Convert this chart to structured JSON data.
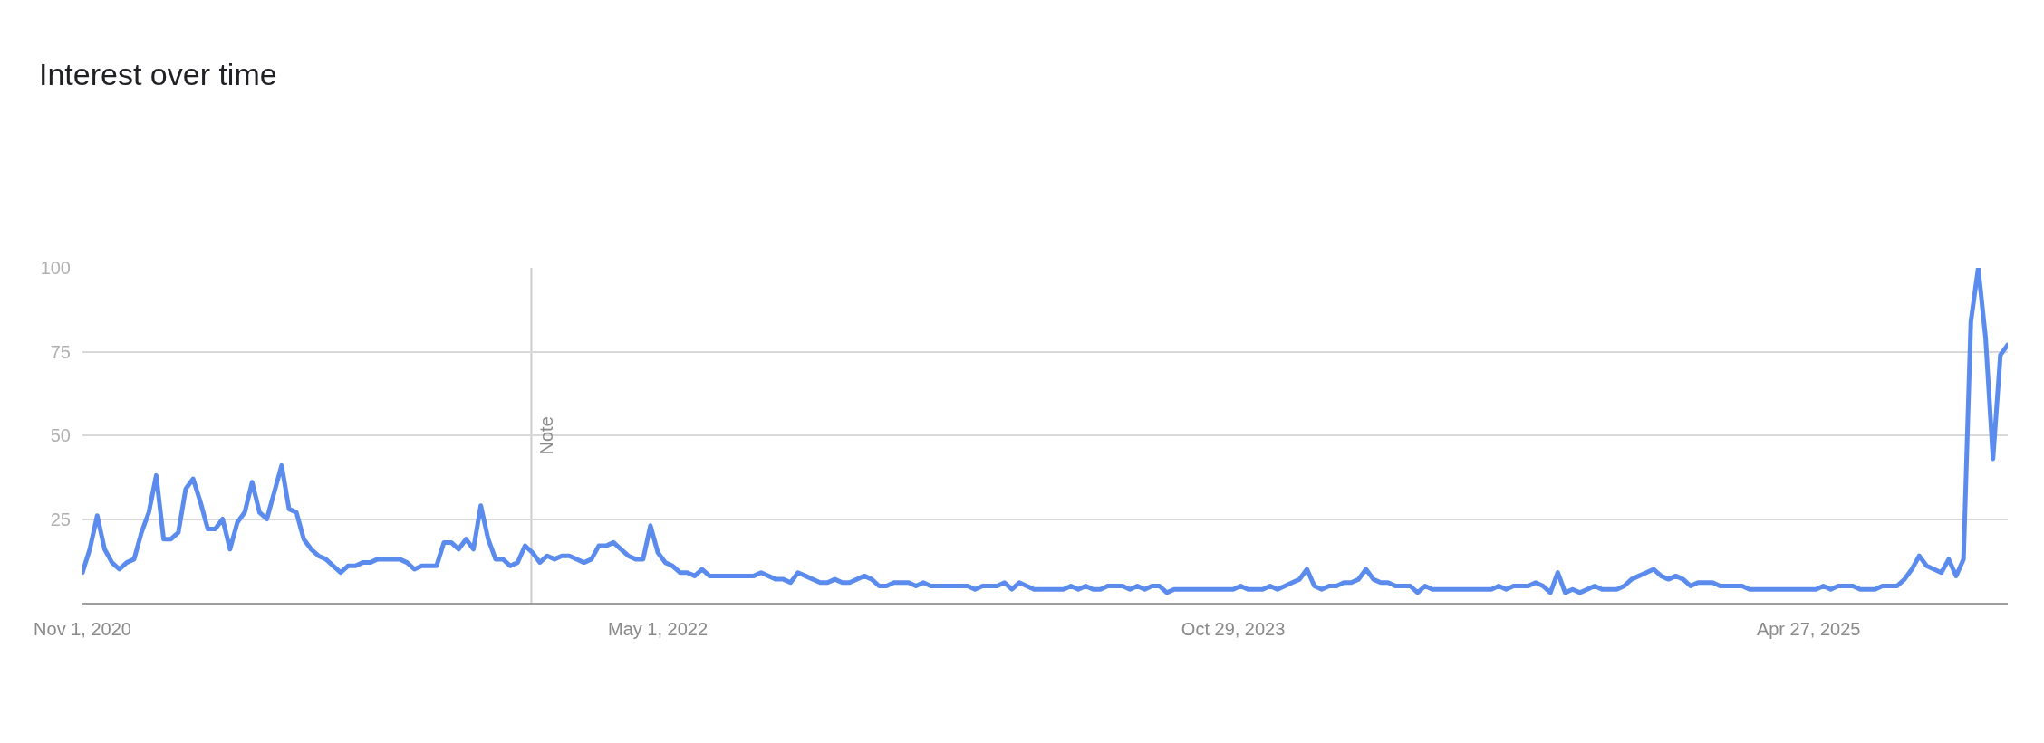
{
  "chart_data": {
    "type": "line",
    "title": "Interest over time",
    "x": [
      "2020-11-01",
      "2020-11-08",
      "2020-11-15",
      "2020-11-22",
      "2020-11-29",
      "2020-12-06",
      "2020-12-13",
      "2020-12-20",
      "2020-12-27",
      "2021-01-03",
      "2021-01-10",
      "2021-01-17",
      "2021-01-24",
      "2021-01-31",
      "2021-02-07",
      "2021-02-14",
      "2021-02-21",
      "2021-02-28",
      "2021-03-07",
      "2021-03-14",
      "2021-03-21",
      "2021-03-28",
      "2021-04-04",
      "2021-04-11",
      "2021-04-18",
      "2021-04-25",
      "2021-05-02",
      "2021-05-09",
      "2021-05-16",
      "2021-05-23",
      "2021-05-30",
      "2021-06-06",
      "2021-06-13",
      "2021-06-20",
      "2021-06-27",
      "2021-07-04",
      "2021-07-11",
      "2021-07-18",
      "2021-07-25",
      "2021-08-01",
      "2021-08-08",
      "2021-08-29",
      "2021-09-05",
      "2021-09-12",
      "2021-09-19",
      "2021-10-03",
      "2021-10-10",
      "2021-10-17",
      "2021-10-24",
      "2021-10-31",
      "2021-11-07",
      "2021-11-14",
      "2021-11-21",
      "2021-11-28",
      "2021-12-05",
      "2021-12-12",
      "2021-12-19",
      "2021-12-26",
      "2022-01-02",
      "2022-01-09",
      "2022-01-16",
      "2022-01-23",
      "2022-01-30",
      "2022-02-06",
      "2022-02-20",
      "2022-02-27",
      "2022-03-06",
      "2022-03-13",
      "2022-03-20",
      "2022-03-27",
      "2022-04-03",
      "2022-04-10",
      "2022-04-17",
      "2022-04-24",
      "2022-05-01",
      "2022-05-08",
      "2022-05-15",
      "2022-05-22",
      "2022-05-29",
      "2022-06-05",
      "2022-06-12",
      "2022-06-19",
      "2022-07-31",
      "2022-08-07",
      "2022-08-21",
      "2022-08-28",
      "2022-09-04",
      "2022-09-11",
      "2022-09-18",
      "2022-10-02",
      "2022-10-09",
      "2022-10-16",
      "2022-10-23",
      "2022-10-30",
      "2022-11-13",
      "2022-11-20",
      "2022-11-27",
      "2022-12-04",
      "2022-12-11",
      "2022-12-25",
      "2023-01-01",
      "2023-01-08",
      "2023-01-15",
      "2023-02-19",
      "2023-02-26",
      "2023-03-05",
      "2023-03-19",
      "2023-03-26",
      "2023-04-02",
      "2023-04-09",
      "2023-04-23",
      "2023-05-21",
      "2023-05-28",
      "2023-06-04",
      "2023-06-11",
      "2023-06-18",
      "2023-06-25",
      "2023-07-02",
      "2023-07-16",
      "2023-07-23",
      "2023-07-30",
      "2023-08-06",
      "2023-08-13",
      "2023-08-20",
      "2023-08-27",
      "2023-09-03",
      "2023-10-29",
      "2023-11-05",
      "2023-11-12",
      "2023-11-26",
      "2023-12-03",
      "2023-12-10",
      "2023-12-24",
      "2023-12-31",
      "2024-01-07",
      "2024-01-14",
      "2024-01-21",
      "2024-01-28",
      "2024-02-04",
      "2024-02-11",
      "2024-02-18",
      "2024-02-25",
      "2024-03-03",
      "2024-03-10",
      "2024-03-17",
      "2024-03-24",
      "2024-03-31",
      "2024-04-14",
      "2024-04-21",
      "2024-04-28",
      "2024-05-05",
      "2024-06-30",
      "2024-07-07",
      "2024-07-14",
      "2024-07-21",
      "2024-08-04",
      "2024-08-11",
      "2024-08-18",
      "2024-08-25",
      "2024-09-01",
      "2024-09-08",
      "2024-09-15",
      "2024-09-22",
      "2024-10-06",
      "2024-10-13",
      "2024-10-27",
      "2024-11-03",
      "2024-11-10",
      "2024-11-17",
      "2024-11-24",
      "2024-12-01",
      "2024-12-08",
      "2024-12-15",
      "2024-12-22",
      "2024-12-29",
      "2025-01-05",
      "2025-01-12",
      "2025-01-26",
      "2025-02-02",
      "2025-02-23",
      "2025-03-02",
      "2025-05-04",
      "2025-05-11",
      "2025-05-18",
      "2025-05-25",
      "2025-06-08",
      "2025-06-15",
      "2025-06-29",
      "2025-07-06",
      "2025-07-20",
      "2025-07-27",
      "2025-08-03",
      "2025-08-10",
      "2025-08-17",
      "2025-08-24",
      "2025-08-31",
      "2025-09-07",
      "2025-09-14",
      "2025-09-21",
      "2025-09-28",
      "2025-10-05",
      "2025-10-12",
      "2025-10-19",
      "2025-10-26",
      "2025-11-02"
    ],
    "series": [
      {
        "color": "#5b8ced",
        "values": [
          9,
          16,
          26,
          16,
          12,
          10,
          12,
          13,
          21,
          27,
          38,
          19,
          19,
          21,
          34,
          37,
          30,
          22,
          22,
          25,
          16,
          24,
          27,
          36,
          27,
          25,
          33,
          41,
          28,
          27,
          19,
          16,
          14,
          13,
          11,
          9,
          11,
          11,
          12,
          12,
          13,
          13,
          12,
          10,
          11,
          11,
          18,
          18,
          16,
          19,
          16,
          29,
          19,
          13,
          13,
          11,
          12,
          17,
          15,
          12,
          14,
          13,
          14,
          14,
          12,
          13,
          17,
          17,
          18,
          16,
          14,
          13,
          13,
          23,
          15,
          12,
          11,
          9,
          9,
          8,
          10,
          8,
          8,
          9,
          7,
          7,
          6,
          9,
          8,
          6,
          6,
          7,
          6,
          6,
          8,
          7,
          5,
          5,
          6,
          6,
          5,
          6,
          5,
          5,
          4,
          5,
          5,
          6,
          4,
          6,
          4,
          4,
          5,
          4,
          5,
          4,
          4,
          5,
          5,
          4,
          5,
          4,
          5,
          5,
          3,
          4,
          4,
          5,
          4,
          4,
          5,
          4,
          6,
          7,
          10,
          5,
          4,
          5,
          5,
          6,
          6,
          7,
          10,
          7,
          6,
          6,
          5,
          5,
          3,
          5,
          4,
          4,
          5,
          4,
          5,
          5,
          6,
          5,
          3,
          9,
          3,
          4,
          3,
          5,
          4,
          4,
          5,
          7,
          8,
          9,
          10,
          8,
          7,
          8,
          7,
          5,
          6,
          6,
          5,
          5,
          4,
          4,
          5,
          4,
          5,
          5,
          4,
          4,
          5,
          5,
          7,
          10,
          14,
          11,
          10,
          9,
          13,
          8,
          13,
          84,
          100,
          79,
          43,
          74,
          77
        ]
      }
    ],
    "xlim": [
      "2020-11-01",
      "2025-11-02"
    ],
    "xticks": [
      {
        "value": "2020-11-01",
        "label": "Nov 1, 2020"
      },
      {
        "value": "2022-05-01",
        "label": "May 1, 2022"
      },
      {
        "value": "2023-10-29",
        "label": "Oct 29, 2023"
      },
      {
        "value": "2025-04-27",
        "label": "Apr 27, 2025"
      }
    ],
    "ylim": [
      0,
      100
    ],
    "yticks": [
      25,
      50,
      75,
      100
    ],
    "grid": "y",
    "marker": "none",
    "line_style": "solid",
    "ref_lines": [
      {
        "axis": "x",
        "value": "2022-01-01",
        "label": "Note",
        "color": "#cccccc"
      }
    ]
  }
}
